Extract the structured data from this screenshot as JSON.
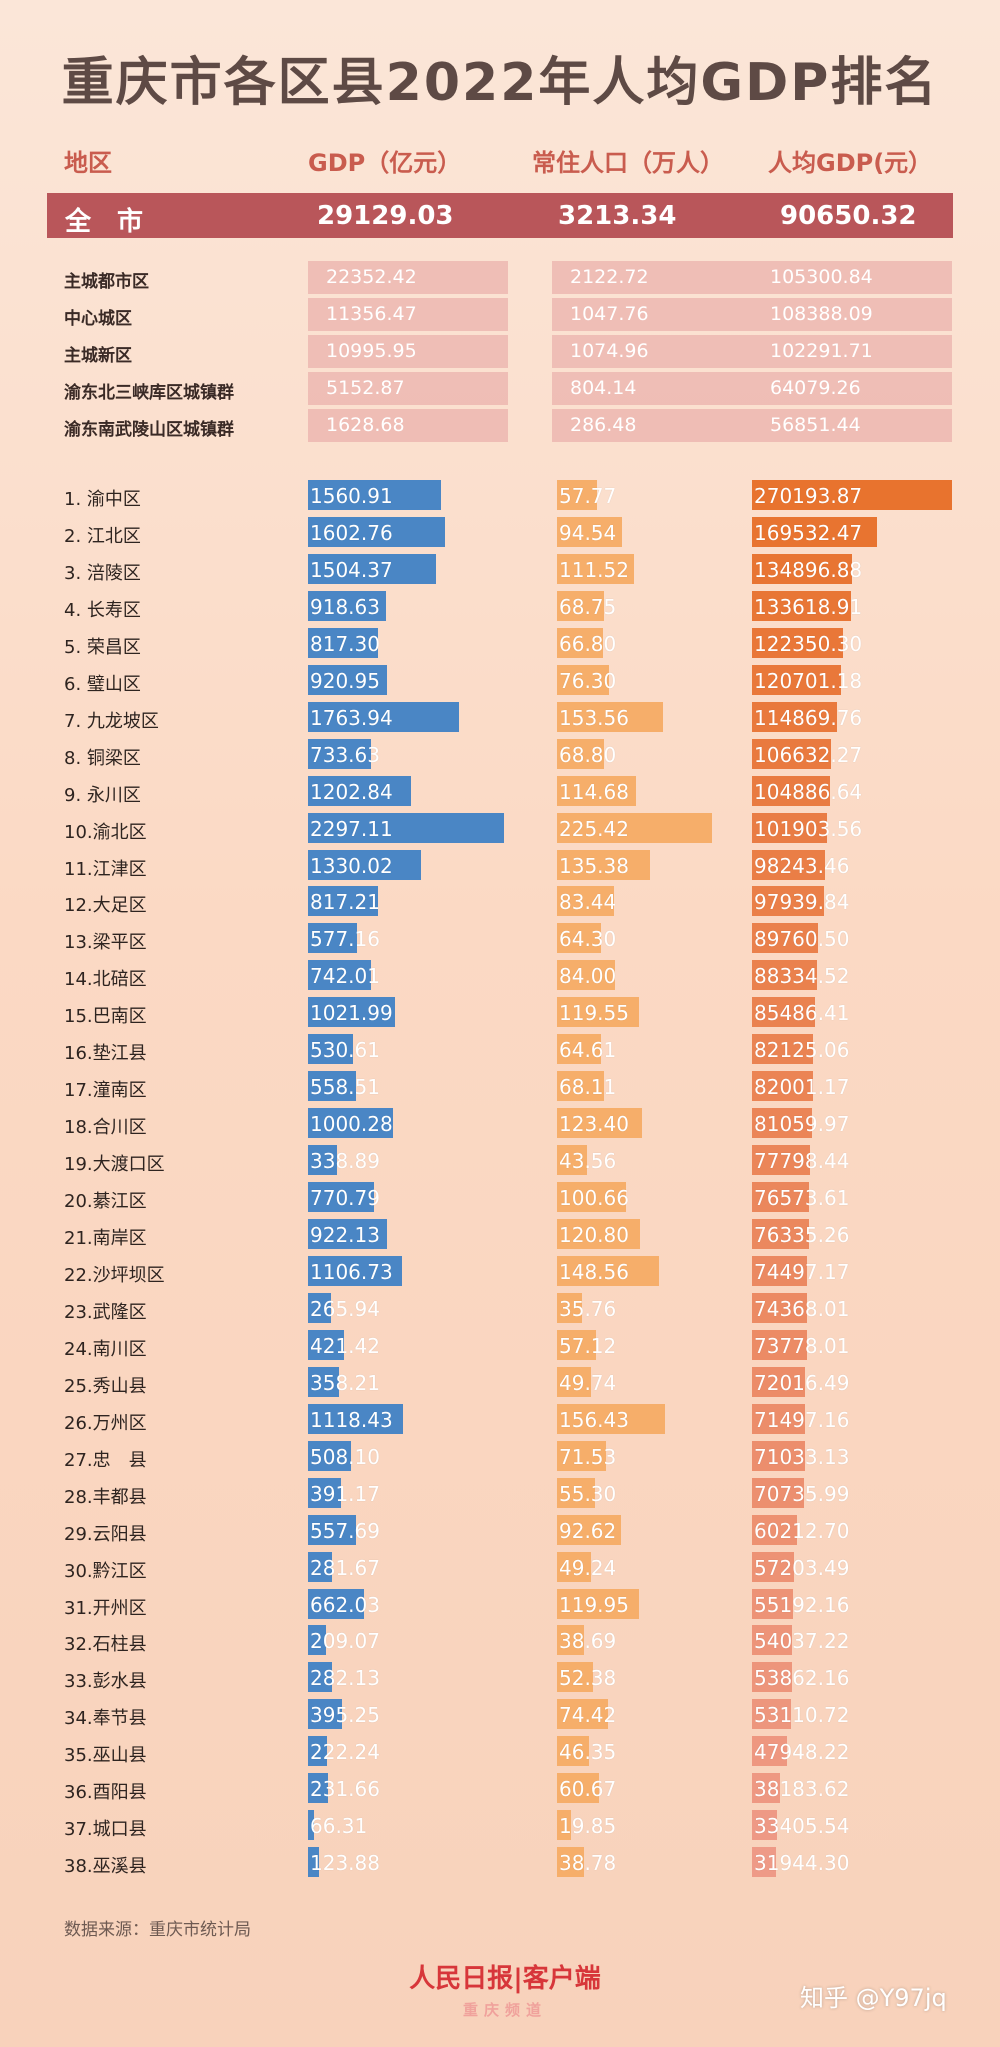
{
  "title": "重庆市各区县2022年人均GDP排名",
  "headers": {
    "region": "地区",
    "gdp": "GDP（亿元）",
    "pop": "常住人口（万人）",
    "pcgdp": "人均GDP(元）"
  },
  "total": {
    "label": "全　市",
    "gdp": "29129.03",
    "pop": "3213.34",
    "pcgdp": "90650.32"
  },
  "summary": [
    {
      "label": "主城都市区",
      "gdp": "22352.42",
      "pop": "2122.72",
      "pcgdp": "105300.84"
    },
    {
      "label": "中心城区",
      "gdp": "11356.47",
      "pop": "1047.76",
      "pcgdp": "108388.09"
    },
    {
      "label": "主城新区",
      "gdp": "10995.95",
      "pop": "1074.96",
      "pcgdp": "102291.71"
    },
    {
      "label": "渝东北三峡库区城镇群",
      "gdp": "5152.87",
      "pop": "804.14",
      "pcgdp": "64079.26"
    },
    {
      "label": "渝东南武陵山区城镇群",
      "gdp": "1628.68",
      "pop": "286.48",
      "pcgdp": "56851.44"
    }
  ],
  "chart_data": {
    "type": "bar",
    "categories": [
      "1.  渝中区",
      "2.  江北区",
      "3.  涪陵区",
      "4.  长寿区",
      "5.  荣昌区",
      "6.  璧山区",
      "7.  九龙坡区",
      "8.  铜梁区",
      "9.  永川区",
      "10.渝北区",
      "11.江津区",
      "12.大足区",
      "13.梁平区",
      "14.北碚区",
      "15.巴南区",
      "16.垫江县",
      "17.潼南区",
      "18.合川区",
      "19.大渡口区",
      "20.綦江区",
      "21.南岸区",
      "22.沙坪坝区",
      "23.武隆区",
      "24.南川区",
      "25.秀山县",
      "26.万州区",
      "27.忠　县",
      "28.丰都县",
      "29.云阳县",
      "30.黔江区",
      "31.开州区",
      "32.石柱县",
      "33.彭水县",
      "34.奉节县",
      "35.巫山县",
      "36.酉阳县",
      "37.城口县",
      "38.巫溪县"
    ],
    "series": [
      {
        "name": "GDP（亿元）",
        "values": [
          "1560.91",
          "1602.76",
          "1504.37",
          "918.63",
          "817.30",
          "920.95",
          "1763.94",
          "733.63",
          "1202.84",
          "2297.11",
          "1330.02",
          "817.21",
          "577.16",
          "742.01",
          "1021.99",
          "530.61",
          "558.51",
          "1000.28",
          "338.89",
          "770.79",
          "922.13",
          "1106.73",
          "265.94",
          "421.42",
          "358.21",
          "1118.43",
          "508.10",
          "391.17",
          "557.69",
          "281.67",
          "662.03",
          "209.07",
          "282.13",
          "395.25",
          "222.24",
          "231.66",
          "66.31",
          "123.88"
        ]
      },
      {
        "name": "常住人口（万人）",
        "values": [
          "57.77",
          "94.54",
          "111.52",
          "68.75",
          "66.80",
          "76.30",
          "153.56",
          "68.80",
          "114.68",
          "225.42",
          "135.38",
          "83.44",
          "64.30",
          "84.00",
          "119.55",
          "64.61",
          "68.11",
          "123.40",
          "43.56",
          "100.66",
          "120.80",
          "148.56",
          "35.76",
          "57.12",
          "49.74",
          "156.43",
          "71.53",
          "55.30",
          "92.62",
          "49.24",
          "119.95",
          "38.69",
          "52.38",
          "74.42",
          "46.35",
          "60.67",
          "19.85",
          "38.78"
        ]
      },
      {
        "name": "人均GDP(元）",
        "values": [
          "270193.87",
          "169532.47",
          "134896.88",
          "133618.91",
          "122350.30",
          "120701.18",
          "114869.76",
          "106632.27",
          "104886.64",
          "101903.56",
          "98243.46",
          "97939.84",
          "89760.50",
          "88334.52",
          "85486.41",
          "82125.06",
          "82001.17",
          "81059.97",
          "77798.44",
          "76573.61",
          "76335.26",
          "74497.17",
          "74368.01",
          "73778.01",
          "72016.49",
          "71497.16",
          "71033.13",
          "70735.99",
          "60212.70",
          "57203.49",
          "55192.16",
          "54037.22",
          "53862.16",
          "53110.72",
          "47948.22",
          "38183.62",
          "33405.54",
          "31944.30"
        ]
      }
    ],
    "colors": {
      "gdp": "#4a86c5",
      "pop": "#f6ae6a",
      "pcgdp_top": "#e8732e",
      "pcgdp_bottom": "#ee9a87"
    }
  },
  "source": "数据来源：重庆市统计局",
  "logo": {
    "line1": "人民日报|客户端",
    "line2": "重庆频道"
  },
  "watermark": "知乎 @Y97jq"
}
